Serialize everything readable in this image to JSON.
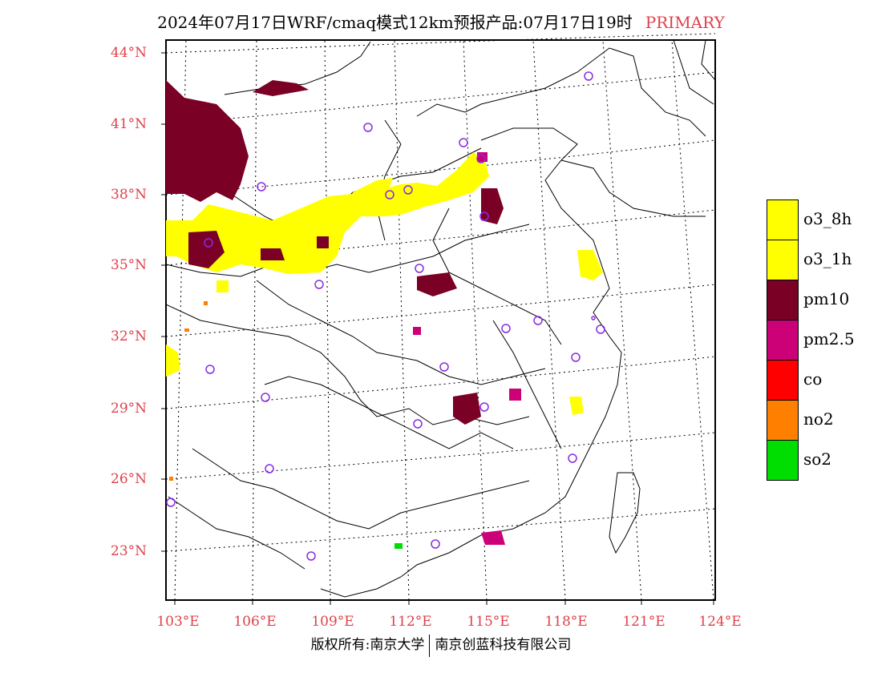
{
  "title": {
    "text": "2024年07月17日WRF/cmaq模式12km预报产品:07月17日19时",
    "tag": "PRIMARY"
  },
  "axes": {
    "lat_labels": [
      "44°N",
      "41°N",
      "38°N",
      "35°N",
      "32°N",
      "29°N",
      "26°N",
      "23°N"
    ],
    "lon_labels": [
      "103°E",
      "106°E",
      "109°E",
      "112°E",
      "115°E",
      "118°E",
      "121°E",
      "124°E"
    ]
  },
  "legend": [
    {
      "label": "o3_8h",
      "color": "#ffff00"
    },
    {
      "label": "o3_1h",
      "color": "#ffff00"
    },
    {
      "label": "pm10",
      "color": "#7a0026"
    },
    {
      "label": "pm2.5",
      "color": "#cc0077"
    },
    {
      "label": "co",
      "color": "#ff0000"
    },
    {
      "label": "no2",
      "color": "#ff7f00"
    },
    {
      "label": "so2",
      "color": "#00dd00"
    }
  ],
  "colors": {
    "o3": "#ffff00",
    "pm10": "#7a0026",
    "pm25": "#cc0077",
    "no2": "#ff7f00",
    "so2": "#00dd00",
    "station_marker": "#8a2be2",
    "label_red": "#e0404a"
  },
  "footer": {
    "left": "版权所有:南京大学",
    "right": "南京创蓝科技有限公司"
  }
}
